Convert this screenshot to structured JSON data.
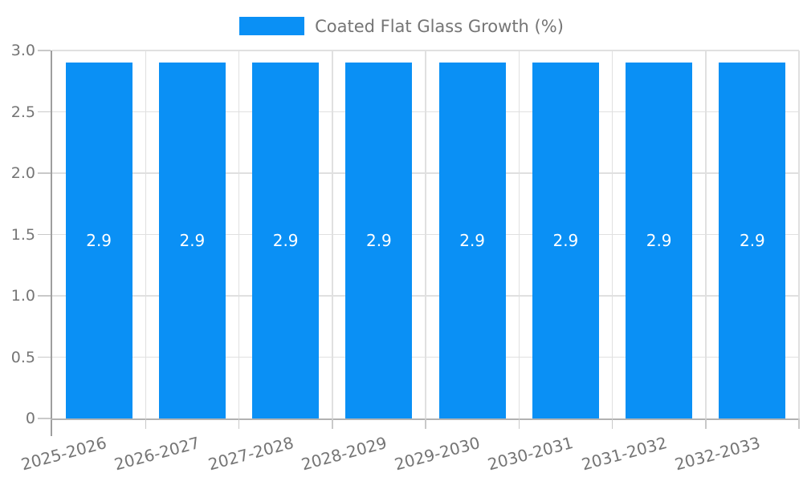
{
  "chart_data": {
    "type": "bar",
    "title": "Coated Flat Glass Growth (%)",
    "legend": {
      "label": "Coated Flat Glass Growth (%)",
      "position": "top-center"
    },
    "categories": [
      "2025-2026",
      "2026-2027",
      "2027-2028",
      "2028-2029",
      "2029-2030",
      "2030-2031",
      "2031-2032",
      "2032-2033"
    ],
    "values": [
      2.9,
      2.9,
      2.9,
      2.9,
      2.9,
      2.9,
      2.9,
      2.9
    ],
    "bar_value_labels": [
      "2.9",
      "2.9",
      "2.9",
      "2.9",
      "2.9",
      "2.9",
      "2.9",
      "2.9"
    ],
    "xlabel": "",
    "ylabel": "",
    "ylim": [
      0,
      3
    ],
    "yticks": [
      0,
      0.5,
      1,
      1.5,
      2,
      2.5,
      3
    ],
    "ytick_labels": [
      "0",
      "0.5",
      "1.0",
      "1.5",
      "2.0",
      "2.5",
      "3.0"
    ],
    "grid": true,
    "colors": {
      "bar": "#0a90f5",
      "bar_label": "#ffffff",
      "grid_line": "#e0e0e0",
      "tick": "#c9c9c9",
      "axis_line": "#9e9e9e",
      "baseline": "#b2b2b2",
      "label_text": "#757575"
    }
  }
}
